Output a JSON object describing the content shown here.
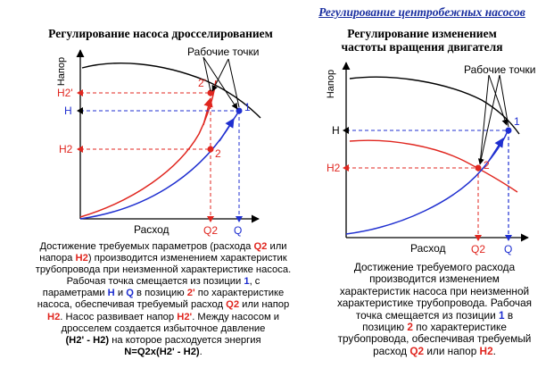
{
  "header": {
    "title": "Регулирование центробежных насосов"
  },
  "left": {
    "title": "Регулирование насоса дросселированием",
    "work_points_label": "Рабочие точки",
    "y_axis_label": "Напор",
    "x_axis_label": "Расход",
    "labels": {
      "h2_prime": "H2'",
      "h": "H",
      "h2": "H2",
      "q2": "Q2",
      "q": "Q",
      "p1": "1",
      "p2": "2",
      "p2_prime": "2'"
    },
    "caption": [
      [
        "Достижение требуемых параметров (расхода ",
        {
          "t": "Q2",
          "c": "red"
        },
        " или"
      ],
      [
        "напора ",
        {
          "t": "H2",
          "c": "red"
        },
        ") производится изменением характеристик"
      ],
      [
        "трубопровода при неизменной характеристике насоса."
      ],
      [
        "Рабочая точка смещается из позиции ",
        {
          "t": "1",
          "c": "blue"
        },
        ", с"
      ],
      [
        "параметрами ",
        {
          "t": "H",
          "c": "blue"
        },
        " и ",
        {
          "t": "Q",
          "c": "blue"
        },
        " в позицию ",
        {
          "t": "2'",
          "c": "red"
        },
        " по характеристике"
      ],
      [
        "насоса, обеспечивая требуемый расход ",
        {
          "t": "Q2",
          "c": "red"
        },
        " или напор"
      ],
      [
        {
          "t": "H2",
          "c": "red"
        },
        ".  Насос развивает напор ",
        {
          "t": "H2'",
          "c": "red"
        },
        ". Между насосом и"
      ],
      [
        "дросселем создается избыточное давление"
      ],
      [
        {
          "t": "(H2' - H2)",
          "c": "black"
        },
        " на которое расходуется энергия"
      ],
      [
        {
          "t": "N=Q2x(H2' - H2)",
          "c": "black"
        },
        "."
      ]
    ]
  },
  "right": {
    "title_line1": "Регулирование изменением",
    "title_line2": "частоты вращения двигателя",
    "work_points_label": "Рабочие точки",
    "y_axis_label": "Напор",
    "x_axis_label": "Расход",
    "labels": {
      "h": "H",
      "h2": "H2",
      "q2": "Q2",
      "q": "Q",
      "p1": "1",
      "p2": "2"
    },
    "caption": [
      [
        "Достижение требуемого расхода"
      ],
      [
        "производится изменением"
      ],
      [
        "характеристик насоса при неизменной"
      ],
      [
        "характеристике трубопровода. Рабочая"
      ],
      [
        "точка смещается из позиции ",
        {
          "t": "1",
          "c": "blue"
        },
        " в"
      ],
      [
        "позицию ",
        {
          "t": "2",
          "c": "red"
        },
        " по характеристике"
      ],
      [
        "трубопровода, обеспечивая требуемый"
      ],
      [
        "расход ",
        {
          "t": "Q2",
          "c": "red"
        },
        " или напор ",
        {
          "t": "H2",
          "c": "red"
        },
        "."
      ]
    ]
  },
  "colors": {
    "blue": "#1f2fd0",
    "red": "#e0261f",
    "navy": "#1a2fa0",
    "text_red": "#e0261f",
    "text_blue": "#1f2fd0"
  }
}
